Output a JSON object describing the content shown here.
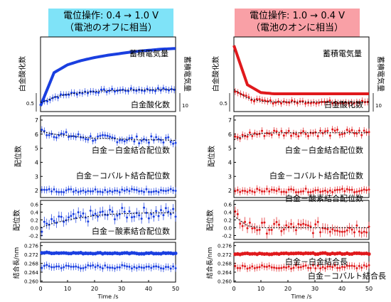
{
  "headers": [
    {
      "line1": "電位操作: 0.4 → 1.0 V",
      "line2": "（電池のオフに相当）",
      "bg": "#7fe3f8"
    },
    {
      "line1": "電位操作: 1.0 → 0.4 V",
      "line2": "（電池のオンに相当）",
      "bg": "#f9a0a6"
    }
  ],
  "colors": {
    "left": "#1a3fe0",
    "right": "#e0191c"
  },
  "shared": {
    "xlabel": "Time /s",
    "xticks": [
      "0",
      "10",
      "20",
      "30",
      "40",
      "50"
    ],
    "xlim": [
      0,
      50
    ]
  },
  "panel1": {
    "ylabel": "白金酸化数",
    "right_ylabel": "蓄積電気量",
    "charge_label": "蓄積電気量",
    "ox_label": "白金酸化数",
    "tick_05": "0.5",
    "tick_10": "10"
  },
  "panel2": {
    "ylabel": "配位数",
    "yticks": [
      "2",
      "3",
      "4",
      "5",
      "6",
      "7"
    ],
    "ylim": [
      1.5,
      7.3
    ],
    "ptpt_label": "白金－白金結合配位数",
    "ptco_label": "白金－コバルト結合配位数"
  },
  "panel3": {
    "ylabel": "配位数",
    "yticks": [
      "-0.2",
      "0.0",
      "0.2",
      "0.4",
      "0.6"
    ],
    "ylim": [
      -0.3,
      0.7
    ],
    "pto_label": "白金－酸素結合配位数"
  },
  "panel4": {
    "ylabel": "結合長/nm",
    "yticks": [
      "0.260",
      "0.264",
      "0.268",
      "0.272",
      "0.276"
    ],
    "ylim": [
      0.2595,
      0.2775
    ],
    "ptpt_label": "白金－白金結合長",
    "ptco_label": "白金－コバルト結合長"
  },
  "chart_data": [
    {
      "type": "line",
      "condition": "電位操作: 0.4 → 1.0 V",
      "x": [
        0,
        5,
        10,
        15,
        20,
        25,
        30,
        35,
        40,
        45,
        50
      ],
      "series": [
        {
          "name": "蓄積電気量",
          "values": [
            0.0,
            0.55,
            0.68,
            0.75,
            0.8,
            0.84,
            0.87,
            0.9,
            0.92,
            0.94,
            0.95
          ]
        },
        {
          "name": "白金酸化数",
          "values": [
            0.48,
            0.62,
            0.7,
            0.74,
            0.77,
            0.79,
            0.8,
            0.81,
            0.81,
            0.82,
            0.82
          ]
        },
        {
          "name": "白金－白金結合配位数",
          "values": [
            6.2,
            6.0,
            5.9,
            5.8,
            5.7,
            5.7,
            5.65,
            5.6,
            5.6,
            5.6,
            5.55
          ]
        },
        {
          "name": "白金－コバルト結合配位数",
          "values": [
            2.0,
            2.0,
            2.0,
            2.0,
            2.0,
            2.0,
            2.0,
            2.0,
            2.0,
            2.0,
            2.0
          ]
        },
        {
          "name": "白金－酸素結合配位数",
          "values": [
            0.0,
            0.12,
            0.2,
            0.26,
            0.31,
            0.34,
            0.36,
            0.37,
            0.38,
            0.38,
            0.38
          ]
        },
        {
          "name": "白金－白金結合長",
          "values": [
            0.2728,
            0.2727,
            0.2727,
            0.2726,
            0.2726,
            0.2726,
            0.2725,
            0.2725,
            0.2725,
            0.2725,
            0.2725
          ]
        },
        {
          "name": "白金－コバルト結合長",
          "values": [
            0.2665,
            0.2665,
            0.2664,
            0.2664,
            0.2664,
            0.2664,
            0.2664,
            0.2664,
            0.2664,
            0.2664,
            0.2664
          ]
        }
      ]
    },
    {
      "type": "line",
      "condition": "電位操作: 1.0 → 0.4 V",
      "x": [
        0,
        5,
        10,
        15,
        20,
        25,
        30,
        35,
        40,
        45,
        50
      ],
      "series": [
        {
          "name": "蓄積電気量",
          "values": [
            1.0,
            0.35,
            0.22,
            0.2,
            0.2,
            0.2,
            0.2,
            0.2,
            0.2,
            0.2,
            0.2
          ]
        },
        {
          "name": "白金酸化数",
          "values": [
            0.82,
            0.6,
            0.52,
            0.5,
            0.5,
            0.5,
            0.5,
            0.5,
            0.5,
            0.5,
            0.5
          ]
        },
        {
          "name": "白金－白金結合配位数",
          "values": [
            5.6,
            5.95,
            6.05,
            6.1,
            6.1,
            6.1,
            6.1,
            6.1,
            6.1,
            6.1,
            6.1
          ]
        },
        {
          "name": "白金－コバルト結合配位数",
          "values": [
            2.0,
            2.0,
            2.0,
            2.0,
            2.0,
            2.0,
            2.0,
            2.0,
            2.0,
            2.0,
            2.0
          ]
        },
        {
          "name": "白金－酸素結合配位数",
          "values": [
            0.3,
            0.05,
            0.0,
            0.0,
            0.0,
            0.0,
            0.0,
            0.0,
            0.0,
            0.0,
            0.0
          ]
        },
        {
          "name": "白金－白金結合長",
          "values": [
            0.2722,
            0.2723,
            0.2723,
            0.2723,
            0.2724,
            0.2724,
            0.2724,
            0.2724,
            0.2724,
            0.2724,
            0.2724
          ]
        },
        {
          "name": "白金－コバルト結合長",
          "values": [
            0.2664,
            0.2664,
            0.2664,
            0.2664,
            0.2664,
            0.2664,
            0.2664,
            0.2664,
            0.2664,
            0.2664,
            0.2664
          ]
        }
      ]
    }
  ]
}
